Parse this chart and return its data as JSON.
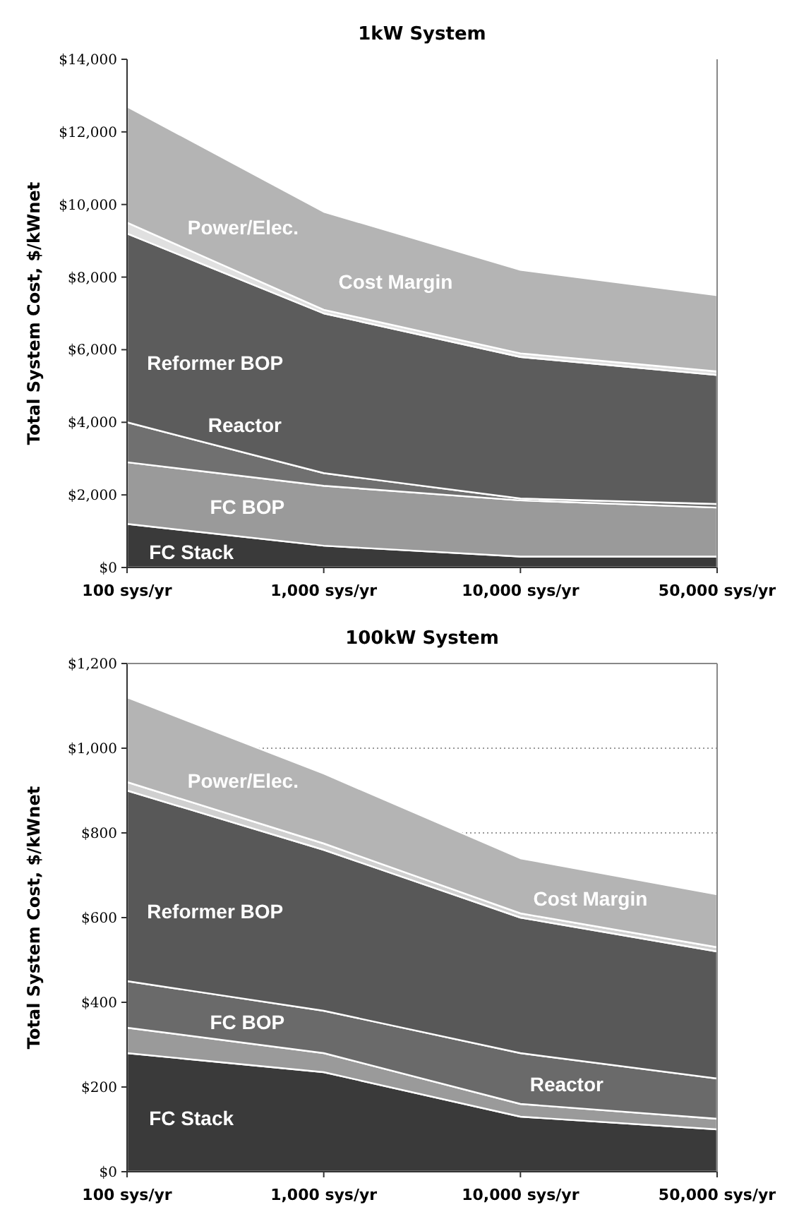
{
  "chart_data": [
    {
      "type": "area",
      "title": "1kW System",
      "ylabel": "Total System Cost, $/kWnet",
      "stacked": true,
      "grid": false,
      "categories": [
        "100 sys/yr",
        "1,000 sys/yr",
        "10,000 sys/yr",
        "50,000 sys/yr"
      ],
      "ylim": [
        0,
        14000
      ],
      "yticks": [
        {
          "value": 0,
          "label": "$0"
        },
        {
          "value": 2000,
          "label": "$2,000"
        },
        {
          "value": 4000,
          "label": "$4,000"
        },
        {
          "value": 6000,
          "label": "$6,000"
        },
        {
          "value": 8000,
          "label": "$8,000"
        },
        {
          "value": 10000,
          "label": "$10,000"
        },
        {
          "value": 12000,
          "label": "$12,000"
        },
        {
          "value": 14000,
          "label": "$14,000"
        }
      ],
      "series": [
        {
          "name": "FC Stack",
          "color": "#3a3a3a",
          "values": [
            1200,
            600,
            300,
            300
          ]
        },
        {
          "name": "FC BOP",
          "color": "#9a9a9a",
          "values": [
            1700,
            1650,
            1550,
            1350
          ]
        },
        {
          "name": "Reactor",
          "color": "#707070",
          "values": [
            1100,
            350,
            50,
            100
          ]
        },
        {
          "name": "Reformer BOP",
          "color": "#5c5c5c",
          "values": [
            5200,
            4400,
            3900,
            3550
          ]
        },
        {
          "name": "Power/Elec.",
          "color": "#e0e0e0",
          "values": [
            300,
            100,
            100,
            100
          ]
        },
        {
          "name": "Cost Margin",
          "color": "#b4b4b4",
          "values": [
            3200,
            2700,
            2300,
            2100
          ]
        }
      ]
    },
    {
      "type": "area",
      "title": "100kW System",
      "ylabel": "Total System Cost, $/kWnet",
      "stacked": true,
      "grid": "y",
      "categories": [
        "100 sys/yr",
        "1,000 sys/yr",
        "10,000 sys/yr",
        "50,000 sys/yr"
      ],
      "ylim": [
        0,
        1200
      ],
      "yticks": [
        {
          "value": 0,
          "label": "$0"
        },
        {
          "value": 200,
          "label": "$200"
        },
        {
          "value": 400,
          "label": "$400"
        },
        {
          "value": 600,
          "label": "$600"
        },
        {
          "value": 800,
          "label": "$800"
        },
        {
          "value": 1000,
          "label": "$1,000"
        },
        {
          "value": 1200,
          "label": "$1,200"
        }
      ],
      "series": [
        {
          "name": "FC Stack",
          "color": "#3a3a3a",
          "values": [
            280,
            235,
            130,
            100
          ]
        },
        {
          "name": "FC BOP",
          "color": "#9a9a9a",
          "values": [
            60,
            45,
            30,
            25
          ]
        },
        {
          "name": "Reactor",
          "color": "#6a6a6a",
          "values": [
            110,
            100,
            120,
            95
          ]
        },
        {
          "name": "Reformer BOP",
          "color": "#585858",
          "values": [
            450,
            380,
            320,
            300
          ]
        },
        {
          "name": "Power/Elec.",
          "color": "#d0d0d0",
          "values": [
            20,
            15,
            10,
            10
          ]
        },
        {
          "name": "Cost Margin",
          "color": "#b4b4b4",
          "values": [
            200,
            165,
            130,
            125
          ]
        }
      ]
    }
  ]
}
